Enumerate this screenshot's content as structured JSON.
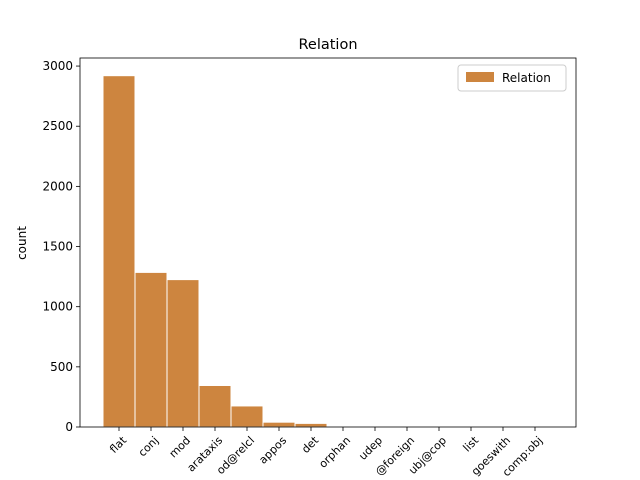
{
  "chart_data": {
    "type": "bar",
    "title": "Relation",
    "ylabel": "count",
    "categories": [
      "flat",
      "conj",
      "mod",
      "arataxis",
      "od@relcl",
      "appos",
      "det",
      "orphan",
      "udep",
      "@foreign",
      "ubj@cop",
      "list",
      "goeswith",
      "comp:obj"
    ],
    "series": [
      {
        "name": "Relation",
        "color": "#cd853f",
        "values": [
          2920,
          1285,
          1225,
          345,
          175,
          40,
          30,
          5,
          3,
          2,
          1,
          1,
          1,
          1
        ]
      }
    ],
    "ylim": [
      0,
      3067
    ],
    "yticks": [
      0,
      500,
      1000,
      1500,
      2000,
      2500,
      3000
    ],
    "legend": "upper right"
  }
}
